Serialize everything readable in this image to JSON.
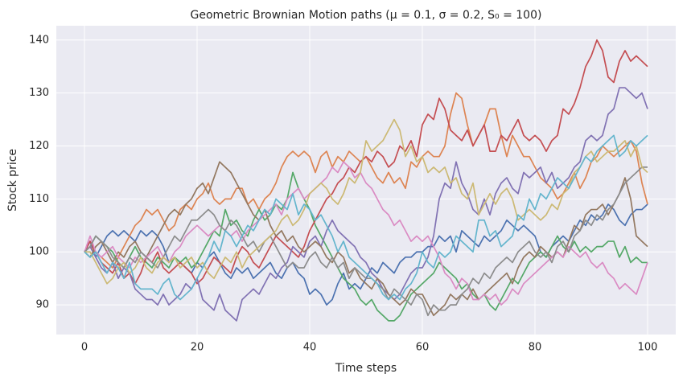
{
  "chart_data": {
    "type": "line",
    "title": "Geometric Brownian Motion paths (μ = 0.1, σ = 0.2, S₀ = 100)",
    "x_label": "Time steps",
    "y_label": "Stock price",
    "xlim": [
      -5,
      105
    ],
    "ylim": [
      84.4,
      142.7
    ],
    "xticks": [
      0,
      20,
      40,
      60,
      80,
      100
    ],
    "yticks": [
      90,
      100,
      110,
      120,
      130,
      140
    ],
    "grid": true,
    "x": [
      0,
      1,
      2,
      3,
      4,
      5,
      6,
      7,
      8,
      9,
      10,
      11,
      12,
      13,
      14,
      15,
      16,
      17,
      18,
      19,
      20,
      21,
      22,
      23,
      24,
      25,
      26,
      27,
      28,
      29,
      30,
      31,
      32,
      33,
      34,
      35,
      36,
      37,
      38,
      39,
      40,
      41,
      42,
      43,
      44,
      45,
      46,
      47,
      48,
      49,
      50,
      51,
      52,
      53,
      54,
      55,
      56,
      57,
      58,
      59,
      60,
      61,
      62,
      63,
      64,
      65,
      66,
      67,
      68,
      69,
      70,
      71,
      72,
      73,
      74,
      75,
      76,
      77,
      78,
      79,
      80,
      81,
      82,
      83,
      84,
      85,
      86,
      87,
      88,
      89,
      90,
      91,
      92,
      93,
      94,
      95,
      96,
      97,
      98,
      99,
      100
    ],
    "series": [
      {
        "color": "#4c72b0",
        "values": [
          100,
          102,
          99,
          101,
          103,
          104,
          103,
          104,
          103,
          102,
          104,
          103,
          104,
          103,
          101,
          98,
          99,
          98,
          97,
          96,
          98,
          97,
          99,
          100,
          98,
          96,
          95,
          97,
          96,
          97,
          95,
          96,
          97,
          98,
          96,
          95,
          97,
          98,
          96,
          95,
          92,
          93,
          92,
          90,
          91,
          94,
          96,
          93,
          94,
          93,
          95,
          97,
          96,
          98,
          97,
          96,
          98,
          99,
          99,
          100,
          100,
          101,
          101,
          103,
          102,
          103,
          100,
          104,
          103,
          102,
          101,
          103,
          102,
          103,
          104,
          106,
          105,
          104,
          105,
          104,
          103,
          100,
          99,
          101,
          102,
          103,
          102,
          104,
          106,
          105,
          107,
          106,
          107,
          109,
          108,
          106,
          105,
          107,
          108,
          108,
          109
        ]
      },
      {
        "color": "#dd8452",
        "values": [
          100,
          101,
          100,
          99,
          98,
          97,
          99,
          101,
          103,
          105,
          106,
          108,
          107,
          108,
          106,
          104,
          105,
          108,
          109,
          108,
          110,
          111,
          113,
          110,
          109,
          110,
          110,
          112,
          112,
          109,
          110,
          108,
          110,
          111,
          113,
          116,
          118,
          119,
          118,
          119,
          118,
          115,
          118,
          119,
          116,
          118,
          117,
          119,
          118,
          117,
          118,
          116,
          114,
          113,
          115,
          113,
          114,
          112,
          117,
          116,
          118,
          119,
          118,
          118,
          120,
          126,
          130,
          129,
          124,
          120,
          122,
          124,
          127,
          127,
          122,
          118,
          122,
          120,
          118,
          118,
          116,
          114,
          113,
          112,
          110,
          111,
          113,
          115,
          112,
          114,
          117,
          118,
          120,
          119,
          118,
          119,
          120,
          121,
          119,
          113,
          109
        ]
      },
      {
        "color": "#55a868",
        "values": [
          100,
          101,
          103,
          102,
          101,
          100,
          98,
          97,
          99,
          101,
          99,
          98,
          97,
          99,
          98,
          97,
          99,
          98,
          99,
          97,
          98,
          100,
          102,
          104,
          103,
          108,
          105,
          106,
          104,
          103,
          106,
          108,
          106,
          107,
          109,
          108,
          110,
          115,
          112,
          110,
          108,
          105,
          103,
          101,
          99,
          97,
          95,
          94,
          93,
          91,
          90,
          91,
          89,
          88,
          87,
          87,
          88,
          90,
          92,
          93,
          94,
          95,
          96,
          98,
          97,
          96,
          95,
          93,
          94,
          92,
          91,
          92,
          90,
          89,
          91,
          93,
          95,
          94,
          96,
          98,
          99,
          100,
          99,
          101,
          103,
          101,
          100,
          102,
          100,
          101,
          100,
          101,
          101,
          102,
          102,
          99,
          101,
          98,
          99,
          98,
          98
        ]
      },
      {
        "color": "#c44e52",
        "values": [
          100,
          102,
          100,
          98,
          97,
          96,
          98,
          95,
          96,
          94,
          96,
          99,
          98,
          100,
          97,
          96,
          97,
          98,
          97,
          96,
          94,
          95,
          97,
          99,
          98,
          97,
          96,
          99,
          101,
          100,
          98,
          97,
          99,
          101,
          103,
          102,
          101,
          100,
          99,
          101,
          104,
          106,
          108,
          110,
          111,
          113,
          114,
          116,
          115,
          117,
          118,
          117,
          119,
          118,
          116,
          117,
          120,
          119,
          121,
          118,
          124,
          126,
          125,
          129,
          127,
          123,
          122,
          121,
          123,
          120,
          122,
          124,
          119,
          119,
          122,
          121,
          123,
          125,
          122,
          121,
          122,
          121,
          119,
          121,
          122,
          127,
          126,
          128,
          131,
          135,
          137,
          140,
          138,
          133,
          132,
          136,
          138,
          136,
          137,
          136,
          135
        ]
      },
      {
        "color": "#8172b3",
        "values": [
          100,
          101,
          99,
          97,
          96,
          98,
          95,
          97,
          96,
          93,
          92,
          91,
          91,
          90,
          92,
          90,
          91,
          92,
          94,
          93,
          95,
          91,
          90,
          89,
          92,
          89,
          88,
          87,
          91,
          92,
          93,
          92,
          94,
          96,
          95,
          97,
          98,
          101,
          100,
          99,
          102,
          103,
          101,
          104,
          106,
          104,
          103,
          102,
          101,
          99,
          98,
          96,
          95,
          93,
          92,
          91,
          92,
          94,
          96,
          97,
          97,
          99,
          103,
          110,
          113,
          112,
          117,
          113,
          111,
          108,
          107,
          110,
          107,
          111,
          113,
          114,
          112,
          111,
          115,
          114,
          115,
          116,
          113,
          115,
          112,
          113,
          114,
          116,
          117,
          121,
          122,
          121,
          122,
          126,
          127,
          131,
          131,
          130,
          129,
          130,
          127
        ]
      },
      {
        "color": "#937860",
        "values": [
          100,
          99,
          101,
          102,
          100,
          98,
          100,
          99,
          101,
          102,
          100,
          99,
          101,
          103,
          105,
          107,
          108,
          107,
          109,
          110,
          112,
          113,
          111,
          114,
          117,
          116,
          115,
          113,
          111,
          109,
          107,
          106,
          108,
          105,
          103,
          104,
          102,
          103,
          101,
          100,
          101,
          102,
          101,
          99,
          98,
          100,
          99,
          96,
          97,
          95,
          94,
          93,
          95,
          94,
          92,
          91,
          90,
          91,
          93,
          92,
          92,
          90,
          88,
          89,
          90,
          92,
          91,
          92,
          91,
          93,
          91,
          92,
          93,
          94,
          95,
          96,
          94,
          97,
          99,
          100,
          99,
          101,
          100,
          99,
          100,
          99,
          102,
          105,
          104,
          107,
          108,
          108,
          109,
          107,
          109,
          111,
          114,
          110,
          103,
          102,
          101
        ]
      },
      {
        "color": "#da8bc3",
        "values": [
          100,
          103,
          100,
          99,
          100,
          101,
          99,
          98,
          97,
          99,
          98,
          99,
          100,
          101,
          99,
          98,
          100,
          101,
          103,
          104,
          105,
          104,
          103,
          104,
          105,
          104,
          103,
          104,
          102,
          104,
          105,
          106,
          107,
          108,
          109,
          107,
          110,
          111,
          112,
          110,
          111,
          112,
          113,
          114,
          116,
          115,
          117,
          116,
          114,
          115,
          113,
          112,
          110,
          108,
          107,
          105,
          106,
          104,
          102,
          103,
          102,
          103,
          101,
          99,
          96,
          95,
          93,
          95,
          94,
          91,
          91,
          92,
          91,
          92,
          90,
          91,
          93,
          92,
          94,
          95,
          96,
          97,
          98,
          99,
          100,
          99,
          101,
          100,
          99,
          100,
          98,
          97,
          98,
          96,
          95,
          93,
          94,
          93,
          92,
          95,
          98
        ]
      },
      {
        "color": "#8c8c8c",
        "values": [
          100,
          101,
          103,
          102,
          101,
          99,
          98,
          97,
          99,
          98,
          100,
          99,
          98,
          97,
          99,
          101,
          103,
          102,
          104,
          106,
          106,
          107,
          108,
          107,
          105,
          104,
          106,
          105,
          103,
          101,
          102,
          100,
          102,
          103,
          101,
          99,
          97,
          98,
          97,
          97,
          99,
          100,
          98,
          97,
          99,
          97,
          98,
          95,
          97,
          96,
          95,
          95,
          94,
          93,
          91,
          93,
          92,
          91,
          90,
          92,
          91,
          88,
          90,
          89,
          89,
          90,
          90,
          92,
          93,
          95,
          94,
          96,
          95,
          97,
          98,
          99,
          98,
          100,
          101,
          102,
          100,
          99,
          100,
          98,
          101,
          102,
          100,
          103,
          104,
          106,
          105,
          107,
          106,
          108,
          109,
          111,
          113,
          114,
          115,
          116,
          116
        ]
      },
      {
        "color": "#ccb974",
        "values": [
          100,
          100,
          98,
          96,
          94,
          95,
          97,
          98,
          96,
          97,
          99,
          97,
          96,
          98,
          99,
          98,
          99,
          97,
          98,
          99,
          97,
          98,
          96,
          95,
          97,
          99,
          98,
          100,
          97,
          99,
          100,
          101,
          102,
          103,
          104,
          106,
          107,
          105,
          106,
          108,
          111,
          112,
          113,
          112,
          110,
          109,
          111,
          114,
          113,
          115,
          121,
          119,
          120,
          121,
          123,
          125,
          123,
          118,
          120,
          117,
          118,
          115,
          116,
          115,
          116,
          113,
          114,
          111,
          110,
          113,
          107,
          109,
          111,
          109,
          111,
          112,
          110,
          106,
          107,
          108,
          107,
          106,
          107,
          109,
          108,
          111,
          112,
          115,
          116,
          118,
          119,
          117,
          118,
          119,
          119,
          120,
          121,
          118,
          120,
          116,
          115
        ]
      },
      {
        "color": "#64b5cd",
        "values": [
          100,
          99,
          100,
          98,
          96,
          98,
          97,
          95,
          98,
          94,
          93,
          93,
          93,
          92,
          94,
          95,
          92,
          91,
          92,
          93,
          95,
          97,
          99,
          102,
          100,
          104,
          103,
          101,
          103,
          105,
          104,
          106,
          108,
          107,
          110,
          109,
          108,
          111,
          107,
          109,
          108,
          106,
          107,
          105,
          103,
          100,
          102,
          99,
          98,
          97,
          96,
          95,
          94,
          92,
          91,
          92,
          91,
          93,
          94,
          96,
          100,
          98,
          97,
          100,
          99,
          100,
          103,
          102,
          101,
          100,
          106,
          106,
          103,
          104,
          101,
          102,
          103,
          107,
          106,
          110,
          108,
          111,
          110,
          112,
          114,
          113,
          112,
          114,
          116,
          118,
          117,
          119,
          120,
          121,
          122,
          118,
          119,
          121,
          120,
          121,
          122
        ]
      }
    ]
  }
}
